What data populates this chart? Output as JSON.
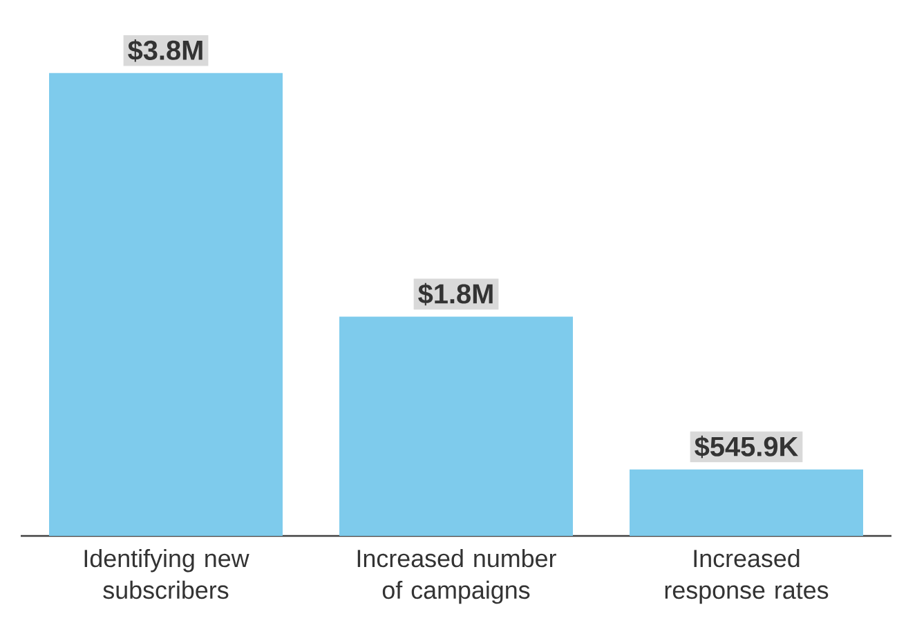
{
  "chart_data": {
    "type": "bar",
    "categories": [
      "Identifying new subscribers",
      "Increased number of campaigns",
      "Increased response rates"
    ],
    "values": [
      3800000,
      1800000,
      545900
    ],
    "value_labels": [
      "$3.8M",
      "$1.8M",
      "$545.9K"
    ],
    "color": "#7ecbec"
  }
}
